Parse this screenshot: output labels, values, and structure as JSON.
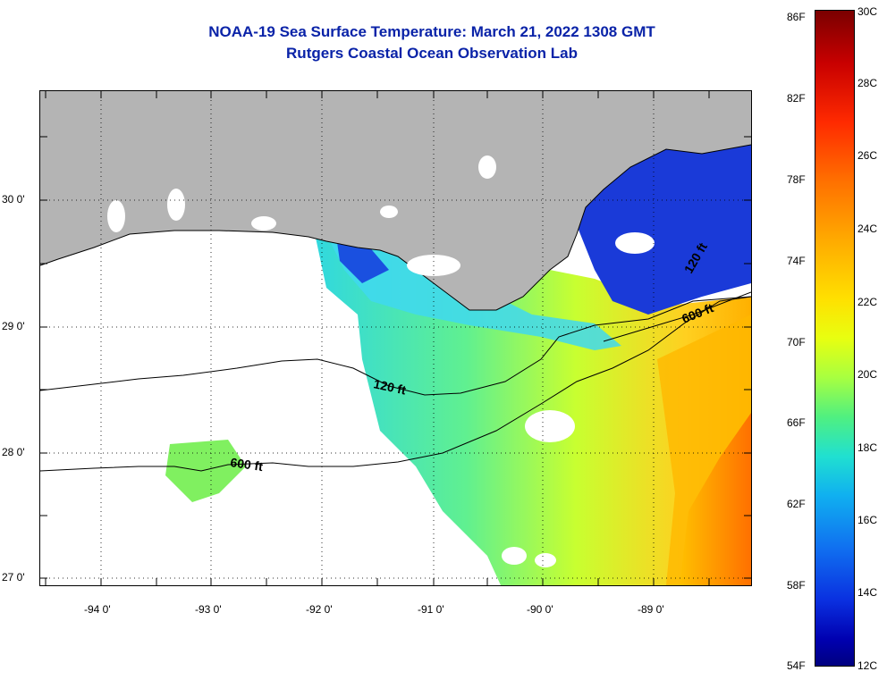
{
  "title": {
    "line1": "NOAA-19 Sea Surface Temperature:  March 21, 2022 1308 GMT",
    "line2": "Rutgers Coastal Ocean Observation Lab"
  },
  "map": {
    "latitude_labels": [
      "30 0'",
      "29 0'",
      "28 0'",
      "27 0'"
    ],
    "longitude_labels": [
      "-94 0'",
      "-93 0'",
      "-92 0'",
      "-91 0'",
      "-90 0'",
      "-89 0'"
    ],
    "contour_labels": [
      "120 ft",
      "600 ft",
      "600 ft",
      "120 ft"
    ],
    "land_color": "#b4b4b4",
    "no_data_color": "#ffffff"
  },
  "colorbar": {
    "fahrenheit_labels": [
      "86F",
      "82F",
      "78F",
      "74F",
      "70F",
      "66F",
      "62F",
      "58F",
      "54F"
    ],
    "celsius_labels": [
      "30C",
      "28C",
      "26C",
      "24C",
      "22C",
      "20C",
      "18C",
      "16C",
      "14C",
      "12C"
    ],
    "range_celsius": [
      12,
      30
    ],
    "range_fahrenheit": [
      54,
      86
    ]
  }
}
